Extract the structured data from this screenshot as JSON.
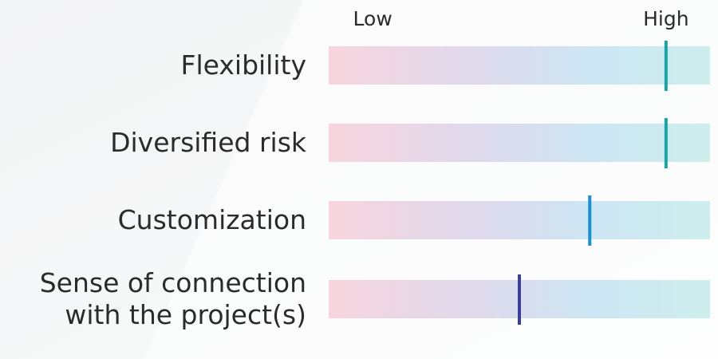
{
  "chart_data": {
    "type": "marker",
    "categories": [
      "Flexibility",
      "Diversified risk",
      "Customization",
      "Sense of connection\nwith the project(s)"
    ],
    "values": [
      100,
      100,
      74,
      50
    ],
    "colors": [
      "#1aa3a6",
      "#1aa3a6",
      "#1b8fd2",
      "#3a3f9e"
    ],
    "xlim": [
      -15,
      115
    ],
    "xticks": [
      {
        "value": 0,
        "label": "Low"
      },
      {
        "value": 100,
        "label": "High"
      }
    ]
  }
}
